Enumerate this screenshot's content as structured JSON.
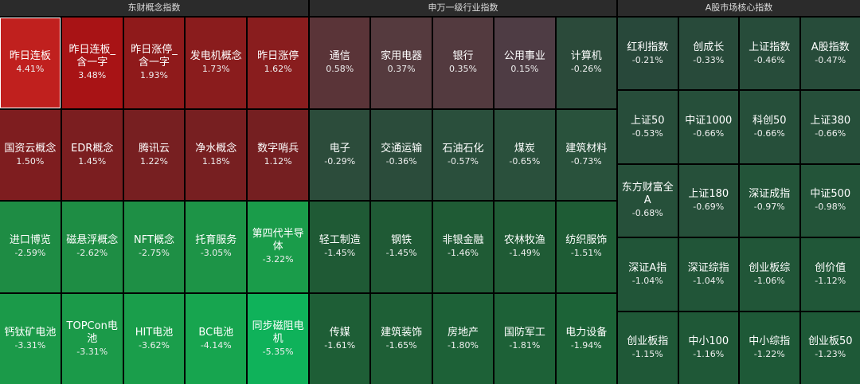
{
  "panels": [
    {
      "title": "东财概念指数",
      "tiles": [
        {
          "label": "昨日连板",
          "value": "4.41%",
          "color": "#c0201e"
        },
        {
          "label": "昨日连板_含一字",
          "value": "3.48%",
          "color": "#a81315"
        },
        {
          "label": "昨日涨停_含一字",
          "value": "1.93%",
          "color": "#8f1a1b"
        },
        {
          "label": "发电机概念",
          "value": "1.73%",
          "color": "#8a1c1d"
        },
        {
          "label": "昨日涨停",
          "value": "1.62%",
          "color": "#891d1e"
        },
        {
          "label": "国资云概念",
          "value": "1.50%",
          "color": "#7e1d1f"
        },
        {
          "label": "EDR概念",
          "value": "1.45%",
          "color": "#7b1e20"
        },
        {
          "label": "腾讯云",
          "value": "1.22%",
          "color": "#771f21"
        },
        {
          "label": "净水概念",
          "value": "1.18%",
          "color": "#771f21"
        },
        {
          "label": "数字哨兵",
          "value": "1.12%",
          "color": "#751f21"
        },
        {
          "label": "进口博览",
          "value": "-2.59%",
          "color": "#1e8c44"
        },
        {
          "label": "磁悬浮概念",
          "value": "-2.62%",
          "color": "#1e8d44"
        },
        {
          "label": "NFT概念",
          "value": "-2.75%",
          "color": "#1e8f45"
        },
        {
          "label": "托育服务",
          "value": "-3.05%",
          "color": "#1d9447"
        },
        {
          "label": "第四代半导体",
          "value": "-3.22%",
          "color": "#1a9c4a"
        },
        {
          "label": "钙钛矿电池",
          "value": "-3.31%",
          "color": "#1b9a49"
        },
        {
          "label": "TOPCon电池",
          "value": "-3.31%",
          "color": "#1b9a49"
        },
        {
          "label": "HIT电池",
          "value": "-3.62%",
          "color": "#1a9e4b"
        },
        {
          "label": "BC电池",
          "value": "-4.14%",
          "color": "#17a54f"
        },
        {
          "label": "同步磁阻电机",
          "value": "-5.35%",
          "color": "#0fb25a"
        }
      ]
    },
    {
      "title": "申万一级行业指数",
      "tiles": [
        {
          "label": "通信",
          "value": "0.58%",
          "color": "#5a3438"
        },
        {
          "label": "家用电器",
          "value": "0.37%",
          "color": "#553a3e"
        },
        {
          "label": "银行",
          "value": "0.35%",
          "color": "#533a3f"
        },
        {
          "label": "公用事业",
          "value": "0.15%",
          "color": "#4e3c44"
        },
        {
          "label": "计算机",
          "value": "-0.26%",
          "color": "#2b4a3a"
        },
        {
          "label": "电子",
          "value": "-0.29%",
          "color": "#2c4c3b"
        },
        {
          "label": "交通运输",
          "value": "-0.36%",
          "color": "#2b4c3b"
        },
        {
          "label": "石油石化",
          "value": "-0.57%",
          "color": "#2a4f3c"
        },
        {
          "label": "煤炭",
          "value": "-0.65%",
          "color": "#2a503c"
        },
        {
          "label": "建筑材料",
          "value": "-0.73%",
          "color": "#29523c"
        },
        {
          "label": "轻工制造",
          "value": "-1.45%",
          "color": "#1f5a35"
        },
        {
          "label": "钢铁",
          "value": "-1.45%",
          "color": "#1f5a35"
        },
        {
          "label": "非银金融",
          "value": "-1.46%",
          "color": "#1f5b35"
        },
        {
          "label": "农林牧渔",
          "value": "-1.49%",
          "color": "#1f5b35"
        },
        {
          "label": "纺织服饰",
          "value": "-1.51%",
          "color": "#1e5c35"
        },
        {
          "label": "传媒",
          "value": "-1.61%",
          "color": "#1e5e36"
        },
        {
          "label": "建筑装饰",
          "value": "-1.65%",
          "color": "#1e5f36"
        },
        {
          "label": "房地产",
          "value": "-1.80%",
          "color": "#1d6137"
        },
        {
          "label": "国防军工",
          "value": "-1.81%",
          "color": "#1d6137"
        },
        {
          "label": "电力设备",
          "value": "-1.94%",
          "color": "#1c6337"
        }
      ]
    },
    {
      "title": "A股市场核心指数",
      "tiles": [
        {
          "label": "红利指数",
          "value": "-0.21%",
          "color": "#28483a"
        },
        {
          "label": "创成长",
          "value": "-0.33%",
          "color": "#284a3a"
        },
        {
          "label": "上证指数",
          "value": "-0.46%",
          "color": "#274c3a"
        },
        {
          "label": "A股指数",
          "value": "-0.47%",
          "color": "#274c3a"
        },
        {
          "label": "上证50",
          "value": "-0.53%",
          "color": "#274d3a"
        },
        {
          "label": "中证1000",
          "value": "-0.66%",
          "color": "#264f3a"
        },
        {
          "label": "科创50",
          "value": "-0.66%",
          "color": "#264f3a"
        },
        {
          "label": "上证380",
          "value": "-0.66%",
          "color": "#264f3a"
        },
        {
          "label": "东方财富全A",
          "value": "-0.68%",
          "color": "#26503a"
        },
        {
          "label": "上证180",
          "value": "-0.69%",
          "color": "#26503a"
        },
        {
          "label": "深证成指",
          "value": "-0.97%",
          "color": "#235439"
        },
        {
          "label": "中证500",
          "value": "-0.98%",
          "color": "#235439"
        },
        {
          "label": "深证A指",
          "value": "-1.04%",
          "color": "#215538"
        },
        {
          "label": "深证综指",
          "value": "-1.04%",
          "color": "#215538"
        },
        {
          "label": "创业板综",
          "value": "-1.06%",
          "color": "#215638"
        },
        {
          "label": "创价值",
          "value": "-1.12%",
          "color": "#205738"
        },
        {
          "label": "创业板指",
          "value": "-1.15%",
          "color": "#1f5837"
        },
        {
          "label": "中小100",
          "value": "-1.16%",
          "color": "#1f5837"
        },
        {
          "label": "中小综指",
          "value": "-1.22%",
          "color": "#1e5937"
        },
        {
          "label": "创业板50",
          "value": "-1.23%",
          "color": "#1e5937"
        }
      ]
    }
  ]
}
